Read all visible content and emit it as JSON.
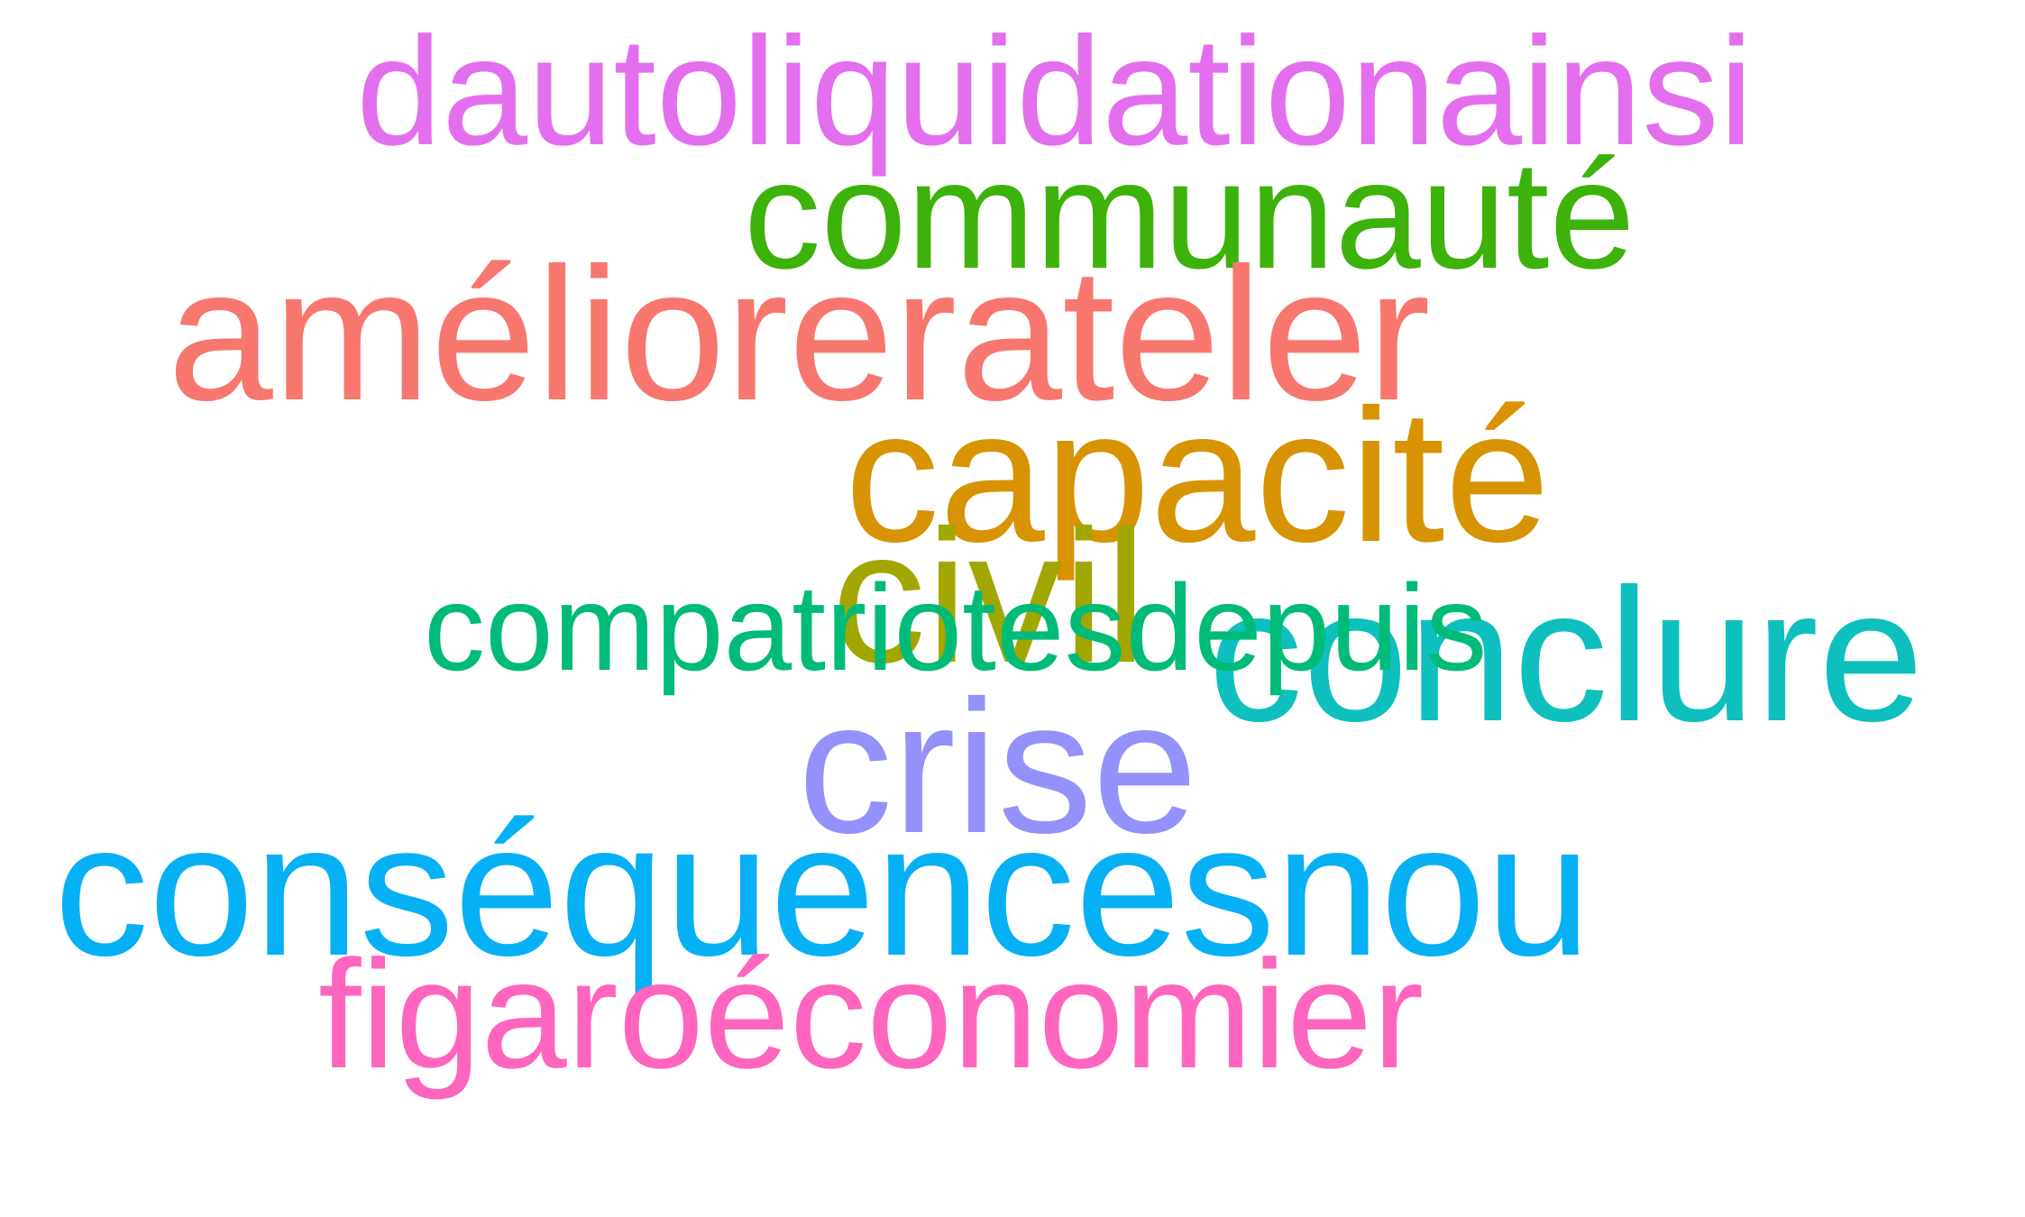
{
  "words": {
    "dautoliquidation": {
      "text": "dautoliquidationainsi",
      "color": "#e46fee"
    },
    "communaute": {
      "text": "communauté",
      "color": "#3cb20a"
    },
    "ameliorer": {
      "text": "améliorerateler",
      "color": "#f7776f"
    },
    "capacite": {
      "text": "capacité",
      "color": "#d79302"
    },
    "civil": {
      "text": "civil",
      "color": "#a2a600"
    },
    "conclure": {
      "text": "conclure",
      "color": "#0ec0bd"
    },
    "compatriotes": {
      "text": "compatriotesdepuis",
      "color": "#00bb77"
    },
    "crise": {
      "text": "crise",
      "color": "#9591fb"
    },
    "consequences": {
      "text": "conséquencesnou",
      "color": "#06b0f5"
    },
    "figaro": {
      "text": "figaroéconomier",
      "color": "#fe65bf"
    }
  }
}
